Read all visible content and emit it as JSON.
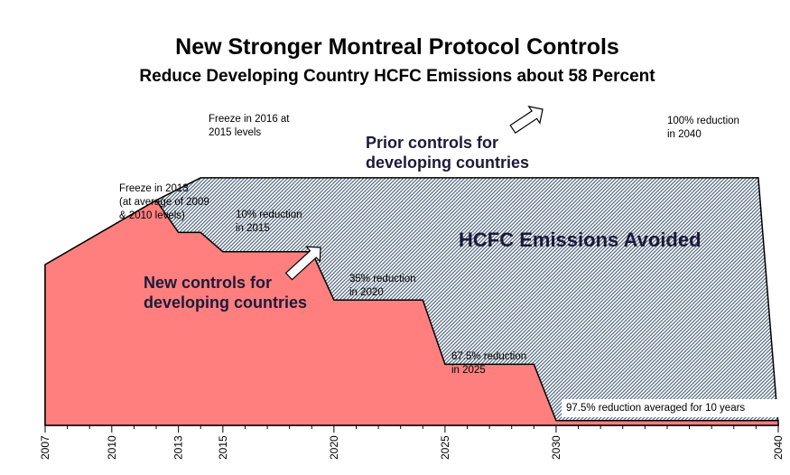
{
  "chart_data": {
    "type": "area",
    "title": "New Stronger Montreal Protocol Controls",
    "subtitle": "Reduce Developing Country HCFC Emissions about 58 Percent",
    "xlim": [
      2007,
      2040
    ],
    "ylim": [
      0,
      100
    ],
    "x_tick_labels": [
      "2007",
      "2010",
      "2013",
      "2015",
      "2020",
      "2025",
      "2030",
      "2040"
    ],
    "x_ticks": [
      2007,
      2010,
      2013,
      2015,
      2020,
      2025,
      2030,
      2040
    ],
    "x_minor_ticks": [
      2008,
      2009,
      2011,
      2012,
      2014,
      2016,
      2017,
      2018,
      2019,
      2021,
      2022,
      2023,
      2024,
      2026,
      2027,
      2028,
      2029,
      2031,
      2032,
      2033,
      2034,
      2035,
      2036,
      2037,
      2038,
      2039
    ],
    "series": [
      {
        "key": "prior",
        "color": "#8c9db0",
        "points": [
          [
            2007,
            50
          ],
          [
            2012,
            70
          ],
          [
            2014,
            77
          ],
          [
            2039.1,
            77
          ],
          [
            2040,
            0
          ]
        ]
      },
      {
        "key": "new",
        "color": "#ff7f7f",
        "points": [
          [
            2007,
            50
          ],
          [
            2012,
            70
          ],
          [
            2013,
            60
          ],
          [
            2014,
            60
          ],
          [
            2015,
            54
          ],
          [
            2019,
            54
          ],
          [
            2020,
            39
          ],
          [
            2024,
            39
          ],
          [
            2025,
            19
          ],
          [
            2029,
            19
          ],
          [
            2030,
            1.5
          ],
          [
            2040,
            1.5
          ]
        ]
      }
    ],
    "annotations": [
      {
        "key": "freeze2016",
        "lines": [
          "Freeze in 2016 at",
          "2015 levels"
        ],
        "boxed": true
      },
      {
        "key": "prior_label",
        "lines": [
          "Prior controls for",
          "developing countries"
        ]
      },
      {
        "key": "red100",
        "lines": [
          "100% reduction",
          "in 2040"
        ],
        "boxed": true
      },
      {
        "key": "freeze2013",
        "lines": [
          "Freeze in 2013",
          "(at average of 2009",
          "& 2010 levels)"
        ]
      },
      {
        "key": "red10",
        "lines": [
          "10% reduction",
          "in 2015"
        ]
      },
      {
        "key": "avoided",
        "lines": [
          "HCFC Emissions Avoided"
        ]
      },
      {
        "key": "new_label",
        "lines": [
          "New controls for",
          "developing countries"
        ]
      },
      {
        "key": "red35",
        "lines": [
          "35% reduction",
          "in 2020"
        ]
      },
      {
        "key": "red675",
        "lines": [
          "67.5% reduction",
          "in 2025"
        ]
      },
      {
        "key": "red975",
        "lines": [
          "97.5% reduction averaged for 10 years"
        ],
        "boxed": true
      }
    ]
  }
}
